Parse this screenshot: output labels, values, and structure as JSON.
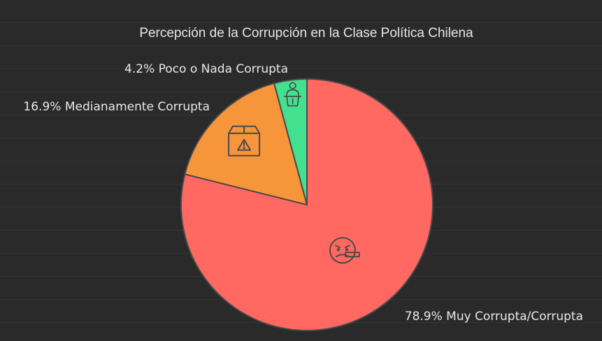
{
  "chart_data": {
    "type": "pie",
    "title": "Percepción de la Corrupción en la Clase Política Chilena",
    "slices": [
      {
        "label": "78.9% Muy Corrupta/Corrupta",
        "value": 78.9,
        "color": "#ff6961",
        "icon": "angry-face-icon"
      },
      {
        "label": "16.9% Medianamente Corrupta",
        "value": 16.9,
        "color": "#f7953a",
        "icon": "warning-box-icon"
      },
      {
        "label": "4.2% Poco o Nada Corrupta",
        "value": 4.2,
        "color": "#43e08f",
        "icon": "politician-podium-icon"
      }
    ],
    "start_angle": "12 o'clock",
    "direction": "clockwise",
    "legend": "none",
    "grid": "horizontal lines"
  }
}
